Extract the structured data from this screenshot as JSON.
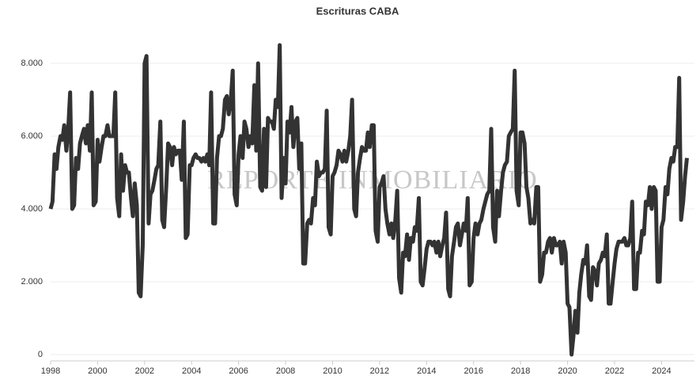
{
  "chart_data": {
    "type": "line",
    "title": "Escrituras CABA",
    "watermark": "REPORTE INMOBILIARIO",
    "color": "#333333",
    "grid": true,
    "x": [
      1998.0,
      1998.08,
      1998.17,
      1998.25,
      1998.33,
      1998.42,
      1998.5,
      1998.58,
      1998.67,
      1998.75,
      1998.83,
      1998.92,
      1999.0,
      1999.08,
      1999.17,
      1999.25,
      1999.33,
      1999.42,
      1999.5,
      1999.58,
      1999.67,
      1999.75,
      1999.83,
      1999.92,
      2000.0,
      2000.08,
      2000.17,
      2000.25,
      2000.33,
      2000.42,
      2000.5,
      2000.58,
      2000.67,
      2000.75,
      2000.83,
      2000.92,
      2001.0,
      2001.08,
      2001.17,
      2001.25,
      2001.33,
      2001.42,
      2001.5,
      2001.58,
      2001.67,
      2001.75,
      2001.83,
      2001.92,
      2002.0,
      2002.08,
      2002.17,
      2002.25,
      2002.33,
      2002.42,
      2002.5,
      2002.58,
      2002.67,
      2002.75,
      2002.83,
      2002.92,
      2003.0,
      2003.08,
      2003.17,
      2003.25,
      2003.33,
      2003.42,
      2003.5,
      2003.58,
      2003.67,
      2003.75,
      2003.83,
      2003.92,
      2004.0,
      2004.08,
      2004.17,
      2004.25,
      2004.33,
      2004.42,
      2004.5,
      2004.58,
      2004.67,
      2004.75,
      2004.83,
      2004.92,
      2005.0,
      2005.08,
      2005.17,
      2005.25,
      2005.33,
      2005.42,
      2005.5,
      2005.58,
      2005.67,
      2005.75,
      2005.83,
      2005.92,
      2006.0,
      2006.08,
      2006.17,
      2006.25,
      2006.33,
      2006.42,
      2006.5,
      2006.58,
      2006.67,
      2006.75,
      2006.83,
      2006.92,
      2007.0,
      2007.08,
      2007.17,
      2007.25,
      2007.33,
      2007.42,
      2007.5,
      2007.58,
      2007.67,
      2007.75,
      2007.83,
      2007.92,
      2008.0,
      2008.08,
      2008.17,
      2008.25,
      2008.33,
      2008.42,
      2008.5,
      2008.58,
      2008.67,
      2008.75,
      2008.83,
      2008.92,
      2009.0,
      2009.08,
      2009.17,
      2009.25,
      2009.33,
      2009.42,
      2009.5,
      2009.58,
      2009.67,
      2009.75,
      2009.83,
      2009.92,
      2010.0,
      2010.08,
      2010.17,
      2010.25,
      2010.33,
      2010.42,
      2010.5,
      2010.58,
      2010.67,
      2010.75,
      2010.83,
      2010.92,
      2011.0,
      2011.08,
      2011.17,
      2011.25,
      2011.33,
      2011.42,
      2011.5,
      2011.58,
      2011.67,
      2011.75,
      2011.83,
      2011.92,
      2012.0,
      2012.08,
      2012.17,
      2012.25,
      2012.33,
      2012.42,
      2012.5,
      2012.58,
      2012.67,
      2012.75,
      2012.83,
      2012.92,
      2013.0,
      2013.08,
      2013.17,
      2013.25,
      2013.33,
      2013.42,
      2013.5,
      2013.58,
      2013.67,
      2013.75,
      2013.83,
      2013.92,
      2014.0,
      2014.08,
      2014.17,
      2014.25,
      2014.33,
      2014.42,
      2014.5,
      2014.58,
      2014.67,
      2014.75,
      2014.83,
      2014.92,
      2015.0,
      2015.08,
      2015.17,
      2015.25,
      2015.33,
      2015.42,
      2015.5,
      2015.58,
      2015.67,
      2015.75,
      2015.83,
      2015.92,
      2016.0,
      2016.08,
      2016.17,
      2016.25,
      2016.33,
      2016.42,
      2016.5,
      2016.58,
      2016.67,
      2016.75,
      2016.83,
      2016.92,
      2017.0,
      2017.08,
      2017.17,
      2017.25,
      2017.33,
      2017.42,
      2017.5,
      2017.58,
      2017.67,
      2017.75,
      2017.83,
      2017.92,
      2018.0,
      2018.08,
      2018.17,
      2018.25,
      2018.33,
      2018.42,
      2018.5,
      2018.58,
      2018.67,
      2018.75,
      2018.83,
      2018.92,
      2019.0,
      2019.08,
      2019.17,
      2019.25,
      2019.33,
      2019.42,
      2019.5,
      2019.58,
      2019.67,
      2019.75,
      2019.83,
      2019.92,
      2020.0,
      2020.08,
      2020.17,
      2020.25,
      2020.33,
      2020.42,
      2020.5,
      2020.58,
      2020.67,
      2020.75,
      2020.83,
      2020.92,
      2021.0,
      2021.08,
      2021.17,
      2021.25,
      2021.33,
      2021.42,
      2021.5,
      2021.58,
      2021.67,
      2021.75,
      2021.83,
      2021.92,
      2022.0,
      2022.08,
      2022.17,
      2022.25,
      2022.33,
      2022.42,
      2022.5,
      2022.58,
      2022.67,
      2022.75,
      2022.83,
      2022.92,
      2023.0,
      2023.08,
      2023.17,
      2023.25,
      2023.33,
      2023.42,
      2023.5,
      2023.58,
      2023.67,
      2023.75,
      2023.83,
      2023.92,
      2024.0,
      2024.08,
      2024.17,
      2024.25,
      2024.33,
      2024.42,
      2024.5,
      2024.58,
      2024.67,
      2024.75,
      2024.83,
      2024.92,
      2025.0,
      2025.08
    ],
    "values": [
      4000,
      4200,
      5500,
      5100,
      5700,
      6000,
      5900,
      6300,
      5600,
      6200,
      7200,
      4000,
      4100,
      5400,
      5100,
      5800,
      6000,
      6200,
      5800,
      6300,
      5600,
      7200,
      4100,
      4200,
      5900,
      5300,
      5700,
      6000,
      6000,
      6300,
      6000,
      6000,
      6000,
      7200,
      4300,
      3800,
      5500,
      4500,
      5200,
      5000,
      5000,
      4300,
      3800,
      4700,
      4100,
      1700,
      1600,
      3000,
      8000,
      8200,
      3600,
      4400,
      4500,
      4800,
      5100,
      5200,
      6400,
      3700,
      3500,
      4600,
      5800,
      5700,
      5200,
      5700,
      5500,
      5600,
      5600,
      4800,
      6400,
      3200,
      3300,
      5200,
      5200,
      5400,
      5500,
      5400,
      5400,
      5300,
      5400,
      5300,
      5500,
      5200,
      7200,
      3600,
      3600,
      5400,
      6000,
      6000,
      6200,
      7000,
      7100,
      6600,
      7000,
      7800,
      4400,
      4100,
      5500,
      6000,
      5400,
      6400,
      6200,
      5700,
      6000,
      5800,
      7400,
      5600,
      8000,
      4600,
      4500,
      6200,
      4600,
      6500,
      6400,
      6400,
      6200,
      7000,
      6800,
      8500,
      4300,
      5400,
      4700,
      6400,
      6100,
      6800,
      5700,
      6400,
      6500,
      5100,
      5800,
      2500,
      2500,
      3600,
      3700,
      3600,
      4300,
      4100,
      5300,
      4900,
      5000,
      5000,
      5100,
      6700,
      3500,
      3300,
      4900,
      5000,
      5200,
      5600,
      5500,
      5300,
      5600,
      5300,
      5600,
      6000,
      7000,
      4000,
      3800,
      5000,
      5400,
      5700,
      5600,
      5600,
      6100,
      5700,
      6300,
      6300,
      3400,
      3100,
      4600,
      4700,
      4900,
      4000,
      3600,
      3300,
      3600,
      3200,
      3700,
      4500,
      2100,
      1700,
      2800,
      2700,
      3300,
      2600,
      3200,
      3100,
      3500,
      3400,
      4300,
      2000,
      1900,
      2400,
      2900,
      3100,
      3100,
      3000,
      3100,
      2800,
      3100,
      2700,
      3000,
      3200,
      3900,
      1800,
      1600,
      2700,
      3100,
      3500,
      3600,
      3000,
      3300,
      3600,
      3400,
      4300,
      1900,
      2000,
      3200,
      3600,
      3300,
      3600,
      3700,
      4000,
      4200,
      4400,
      4500,
      6200,
      3500,
      3100,
      4500,
      3800,
      4500,
      5000,
      5200,
      5300,
      6000,
      6100,
      6200,
      7800,
      4500,
      4100,
      6100,
      6100,
      5800,
      4600,
      4300,
      3600,
      3700,
      3600,
      4600,
      4600,
      2000,
      2200,
      2800,
      2800,
      3100,
      3200,
      2800,
      3200,
      3000,
      3000,
      3100,
      2500,
      3100,
      2800,
      1400,
      1300,
      0,
      500,
      1200,
      600,
      1700,
      2200,
      2600,
      2500,
      3000,
      1600,
      1500,
      2400,
      2300,
      1900,
      2500,
      2600,
      2800,
      2700,
      3300,
      1400,
      1400,
      2000,
      2500,
      2900,
      3100,
      3100,
      3100,
      3200,
      3000,
      3000,
      3200,
      4200,
      1800,
      1800,
      2800,
      2800,
      3400,
      3300,
      4200,
      4100,
      4600,
      4000,
      4600,
      4500,
      2000,
      2000,
      3500,
      3700,
      4600,
      4400,
      5100,
      5400,
      5300,
      5700,
      5700,
      7600,
      3700,
      4200,
      4900,
      5400
    ],
    "xlim": [
      1998,
      2025.4
    ],
    "xticks": [
      1998,
      2000,
      2002,
      2004,
      2006,
      2008,
      2010,
      2012,
      2014,
      2016,
      2018,
      2020,
      2022,
      2024
    ],
    "ylim": [
      0,
      9000
    ],
    "yticks": [
      0,
      {
        "value": 2000,
        "label": "2.000"
      },
      {
        "value": 4000,
        "label": "4.000"
      },
      {
        "value": 6000,
        "label": "6.000"
      },
      {
        "value": 8000,
        "label": "8.000"
      }
    ]
  }
}
